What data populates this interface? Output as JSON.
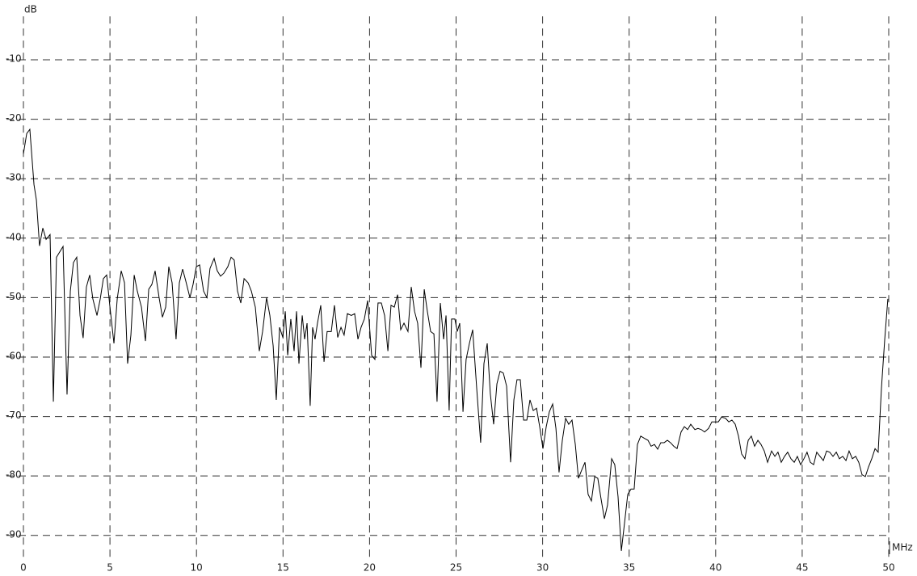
{
  "chart_data": {
    "type": "line",
    "ylabel": "dB",
    "xlabel": "MHz",
    "color": "#000000",
    "grid": true,
    "xlim": [
      0,
      50
    ],
    "ylim": [
      -93.7,
      -2.7
    ],
    "xticks": [
      0,
      5,
      10,
      15,
      20,
      25,
      30,
      35,
      40,
      45,
      50
    ],
    "yticks": [
      -10,
      -20,
      -30,
      -40,
      -50,
      -60,
      -70,
      -80,
      -90
    ],
    "x": [
      0,
      0.19,
      0.37,
      0.61,
      0.75,
      0.93,
      1.12,
      1.31,
      1.54,
      1.73,
      1.91,
      2.29,
      2.52,
      2.71,
      2.89,
      3.08,
      3.27,
      3.45,
      3.64,
      3.83,
      4.01,
      4.25,
      4.44,
      4.62,
      4.81,
      5.0,
      5.23,
      5.42,
      5.65,
      5.84,
      6.02,
      6.21,
      6.4,
      6.58,
      6.82,
      7.05,
      7.24,
      7.42,
      7.61,
      7.84,
      8.03,
      8.22,
      8.4,
      8.59,
      8.82,
      9.01,
      9.2,
      9.38,
      9.62,
      9.8,
      9.99,
      10.18,
      10.41,
      10.6,
      10.78,
      11.02,
      11.2,
      11.39,
      11.58,
      11.81,
      12.0,
      12.18,
      12.37,
      12.56,
      12.75,
      12.98,
      13.17,
      13.4,
      13.63,
      13.82,
      14.05,
      14.24,
      14.43,
      14.61,
      14.8,
      14.99,
      15.13,
      15.27,
      15.45,
      15.64,
      15.78,
      15.92,
      16.11,
      16.25,
      16.39,
      16.57,
      16.71,
      16.85,
      16.99,
      17.18,
      17.37,
      17.55,
      17.79,
      17.97,
      18.16,
      18.35,
      18.53,
      18.72,
      18.95,
      19.14,
      19.33,
      19.51,
      19.7,
      19.89,
      20.12,
      20.31,
      20.49,
      20.68,
      20.87,
      21.06,
      21.24,
      21.43,
      21.62,
      21.8,
      21.99,
      22.22,
      22.41,
      22.6,
      22.78,
      22.97,
      23.16,
      23.34,
      23.53,
      23.72,
      23.9,
      24.09,
      24.28,
      24.42,
      24.6,
      24.74,
      24.93,
      25.07,
      25.21,
      25.4,
      25.58,
      25.77,
      25.96,
      26.19,
      26.42,
      26.61,
      26.8,
      26.98,
      27.17,
      27.36,
      27.54,
      27.73,
      27.92,
      28.15,
      28.34,
      28.52,
      28.71,
      28.9,
      29.09,
      29.27,
      29.46,
      29.65,
      29.83,
      30.02,
      30.21,
      30.39,
      30.58,
      30.77,
      30.95,
      31.14,
      31.33,
      31.51,
      31.7,
      31.89,
      32.07,
      32.26,
      32.45,
      32.63,
      32.82,
      33.01,
      33.19,
      33.38,
      33.57,
      33.75,
      33.99,
      34.17,
      34.36,
      34.55,
      34.73,
      34.92,
      35.11,
      35.29,
      35.48,
      35.67,
      35.9,
      36.09,
      36.27,
      36.46,
      36.65,
      36.83,
      37.02,
      37.21,
      37.39,
      37.58,
      37.77,
      38.0,
      38.19,
      38.38,
      38.56,
      38.8,
      38.98,
      39.17,
      39.36,
      39.59,
      39.78,
      39.96,
      40.15,
      40.34,
      40.57,
      40.76,
      40.94,
      41.13,
      41.32,
      41.5,
      41.69,
      41.88,
      42.06,
      42.25,
      42.44,
      42.62,
      42.81,
      43.0,
      43.23,
      43.42,
      43.6,
      43.79,
      43.98,
      44.16,
      44.35,
      44.54,
      44.72,
      44.91,
      45.1,
      45.28,
      45.47,
      45.66,
      45.84,
      46.03,
      46.22,
      46.41,
      46.59,
      46.78,
      46.97,
      47.15,
      47.34,
      47.53,
      47.71,
      47.9,
      48.09,
      48.27,
      48.46,
      48.65,
      48.83,
      49.02,
      49.21,
      49.39,
      49.58,
      49.77,
      49.95
    ],
    "values": [
      -25.8,
      -22.4,
      -21.7,
      -31,
      -33.6,
      -41.3,
      -38.3,
      -40.2,
      -39.4,
      -67.5,
      -43.2,
      -41.4,
      -66.3,
      -48.9,
      -44.1,
      -43.2,
      -53,
      -56.8,
      -48.2,
      -46.2,
      -50.2,
      -53,
      -50.2,
      -46.8,
      -46.2,
      -51.6,
      -57.7,
      -50.2,
      -45.5,
      -47.5,
      -61.1,
      -56.3,
      -46.2,
      -48.9,
      -51.6,
      -57.3,
      -48.6,
      -47.8,
      -45.5,
      -50,
      -53.3,
      -51.6,
      -44.8,
      -47.5,
      -57,
      -47.5,
      -45.2,
      -47.2,
      -50,
      -47.8,
      -44.8,
      -44.5,
      -48.9,
      -50,
      -45.1,
      -43.4,
      -45.5,
      -46.4,
      -45.9,
      -44.8,
      -43.2,
      -43.7,
      -48.9,
      -50.9,
      -46.8,
      -47.5,
      -48.9,
      -51.6,
      -59,
      -55.7,
      -50,
      -53,
      -58.1,
      -67.2,
      -55,
      -56.7,
      -52.3,
      -59.7,
      -53.6,
      -59,
      -52.3,
      -61.1,
      -53,
      -57,
      -54.3,
      -68.2,
      -55,
      -57,
      -54.3,
      -51.3,
      -60.8,
      -55.7,
      -55.7,
      -51.3,
      -56.7,
      -55,
      -56.3,
      -52.7,
      -53,
      -52.7,
      -57,
      -55,
      -53.6,
      -50.5,
      -59.7,
      -60.4,
      -50.9,
      -50.9,
      -53,
      -59,
      -51.3,
      -51.6,
      -49.5,
      -55.4,
      -54.3,
      -55.7,
      -48.2,
      -52.3,
      -54.3,
      -61.8,
      -48.6,
      -52.3,
      -55.7,
      -56.1,
      -67.5,
      -50.9,
      -57,
      -53,
      -69,
      -53.6,
      -53.6,
      -55.7,
      -54.3,
      -69.2,
      -60.4,
      -57.7,
      -55.4,
      -65.2,
      -74.4,
      -61.1,
      -57.7,
      -66.2,
      -71.3,
      -64.5,
      -62.4,
      -62.7,
      -64.9,
      -77.7,
      -67.2,
      -63.8,
      -63.8,
      -70.6,
      -70.6,
      -67.2,
      -69,
      -68.6,
      -71.7,
      -75.4,
      -71.7,
      -69.2,
      -67.9,
      -72,
      -79.4,
      -74,
      -70.3,
      -71.3,
      -70.6,
      -74.7,
      -80.4,
      -79,
      -77.7,
      -83.1,
      -84.2,
      -80.1,
      -80.4,
      -83.9,
      -87.2,
      -84.9,
      -77.1,
      -78.1,
      -83.5,
      -92.6,
      -88,
      -83.1,
      -82.2,
      -82.2,
      -74.7,
      -73.3,
      -73.7,
      -74,
      -75,
      -74.7,
      -75.5,
      -74.4,
      -74.4,
      -74,
      -74.4,
      -75,
      -75.4,
      -72.6,
      -71.7,
      -72.2,
      -71.3,
      -72.2,
      -72,
      -72.2,
      -72.6,
      -72,
      -70.9,
      -70.9,
      -70.9,
      -70.1,
      -70.3,
      -70.9,
      -70.6,
      -71.3,
      -73.3,
      -76.3,
      -77.1,
      -74,
      -73.3,
      -75,
      -74,
      -74.7,
      -75.8,
      -77.7,
      -75.8,
      -76.7,
      -76,
      -77.7,
      -76.7,
      -76,
      -77.1,
      -77.7,
      -76.7,
      -78.1,
      -77.1,
      -76,
      -77.7,
      -78.1,
      -76,
      -76.7,
      -77.4,
      -75.8,
      -76,
      -76.7,
      -76,
      -77.1,
      -76.7,
      -77.4,
      -75.8,
      -77.1,
      -76.7,
      -77.7,
      -79.8,
      -80.1,
      -78.5,
      -77.1,
      -75.4,
      -76,
      -65.2,
      -57,
      -50.2
    ]
  }
}
